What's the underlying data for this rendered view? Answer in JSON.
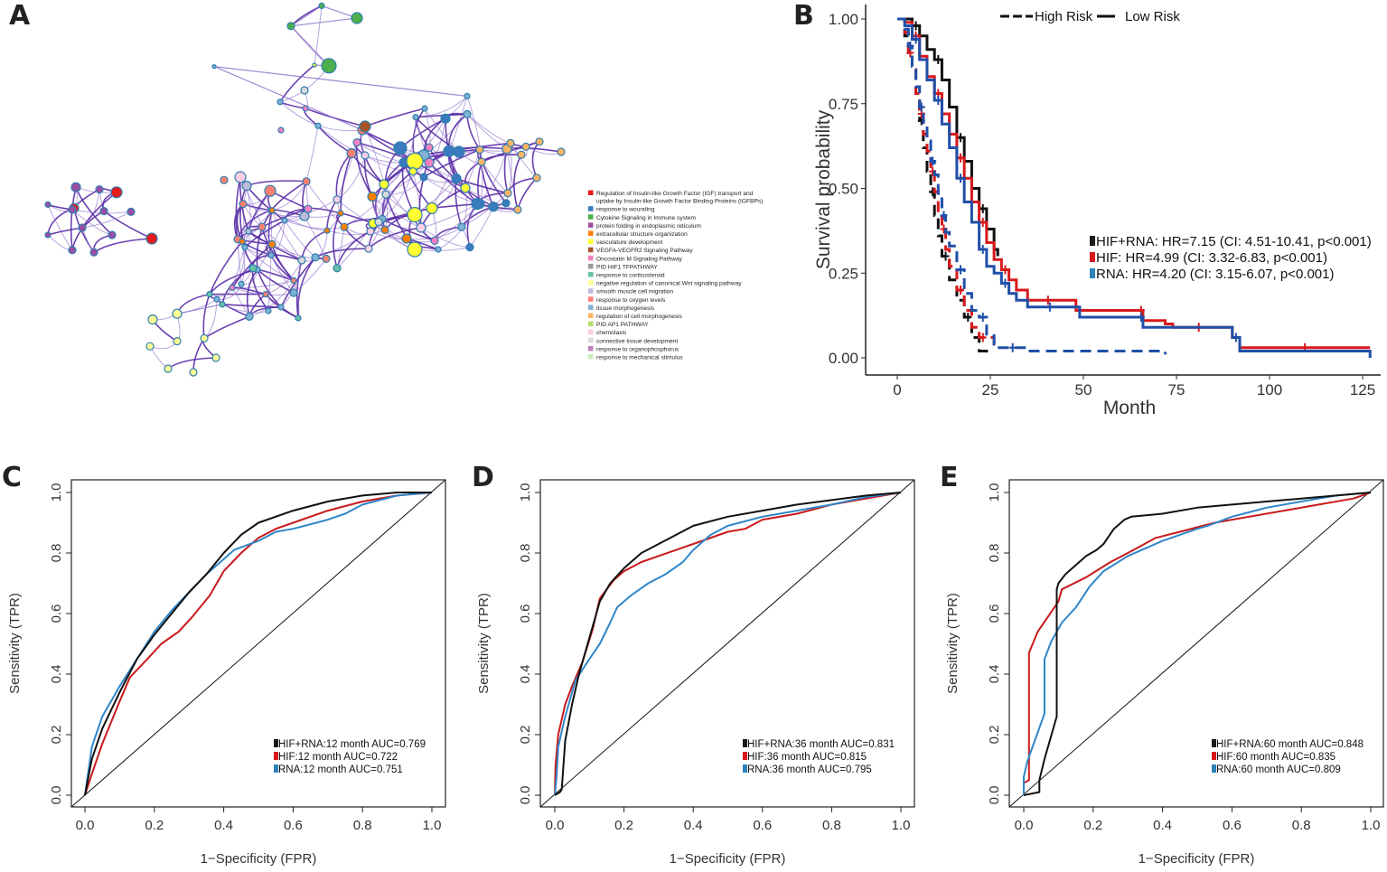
{
  "figure": {
    "panels": [
      "A",
      "B",
      "C",
      "D",
      "E"
    ]
  },
  "network_legend": {
    "items": [
      {
        "label": "Regulation of Insulin-like Growth Factor (IGF) transport and",
        "label2": "uptake by Insulin-like Growth Factor Binding Proteins (IGFBPs)",
        "color": "#e41a1c"
      },
      {
        "label": "response to wounding",
        "color": "#3a7bbf"
      },
      {
        "label": "Cytokine Signaling in Immune system",
        "color": "#4daf4a"
      },
      {
        "label": "protein folding in endoplasmic reticulum",
        "color": "#984ea3"
      },
      {
        "label": "extracellular structure organization",
        "color": "#ff7f00"
      },
      {
        "label": "vasculature development",
        "color": "#ffff33"
      },
      {
        "label": "VEGFA-VEGFR2 Signaling Pathway",
        "color": "#a65628"
      },
      {
        "label": "Oncostatin M Signaling Pathway",
        "color": "#f781bf"
      },
      {
        "label": "PID HIF1 TFPATHWAY",
        "color": "#999999"
      },
      {
        "label": "response to corticosteroid",
        "color": "#66c2a5"
      },
      {
        "label": "negative regulation of canonical Wnt signaling pathway",
        "color": "#ffff99"
      },
      {
        "label": "smooth muscle cell migration",
        "color": "#bebada"
      },
      {
        "label": "response to oxygen levels",
        "color": "#fb8072"
      },
      {
        "label": "tissue morphogenesis",
        "color": "#80b1d3"
      },
      {
        "label": "regulation of cell morphogenesis",
        "color": "#fdb462"
      },
      {
        "label": "PID AP1 PATHWAY",
        "color": "#b3de69"
      },
      {
        "label": "chemotaxis",
        "color": "#fccde5"
      },
      {
        "label": "connective tissue development",
        "color": "#d9d9d9"
      },
      {
        "label": "response to organophosphorus",
        "color": "#bc80bd"
      },
      {
        "label": "response to mechanical stimulus",
        "color": "#ccebc5"
      }
    ]
  },
  "chart_data": [
    {
      "panel": "B",
      "type": "line",
      "subtype": "kaplan-meier",
      "title": "",
      "xlabel": "Month",
      "ylabel": "Survival probability",
      "xlim": [
        0,
        127
      ],
      "ylim": [
        0,
        1
      ],
      "xticks": [
        "0",
        "25",
        "50",
        "75",
        "100",
        "125"
      ],
      "xtick_values": [
        0,
        25,
        50,
        75,
        100,
        125
      ],
      "yticks": [
        "0.00",
        "0.25",
        "0.50",
        "0.75",
        "1.00"
      ],
      "ytick_values": [
        0,
        0.25,
        0.5,
        0.75,
        1.0
      ],
      "grid": false,
      "linetype_legend": {
        "position": "top",
        "items": [
          {
            "label": "High Risk",
            "dash": true
          },
          {
            "label": "Low Risk",
            "dash": false
          }
        ]
      },
      "legend": {
        "position": "center-right",
        "items": [
          {
            "label": "HIF+RNA: HR=7.15 (CI: 4.51-10.41, p<0.001)",
            "color": "#1a1a1a"
          },
          {
            "label": "HIF: HR=4.99 (CI: 3.32-6.83, p<0.001)",
            "color": "#d7191c"
          },
          {
            "label": "RNA:  HR=4.20 (CI: 3.15-6.07, p<0.001)",
            "color": "#2b83ba"
          }
        ]
      },
      "series": [
        {
          "name": "HIF+RNA Low Risk",
          "color": "#111111",
          "dash": false,
          "x": [
            0,
            2,
            4,
            6,
            8,
            10,
            12,
            14,
            16,
            18,
            20,
            22,
            24,
            26,
            27
          ],
          "y": [
            1.0,
            1.0,
            0.98,
            0.95,
            0.91,
            0.88,
            0.82,
            0.74,
            0.65,
            0.58,
            0.5,
            0.44,
            0.38,
            0.32,
            0.3
          ]
        },
        {
          "name": "HIF Low Risk",
          "color": "#d7191c",
          "dash": false,
          "x": [
            0,
            2,
            4,
            6,
            8,
            10,
            12,
            14,
            16,
            18,
            20,
            22,
            24,
            26,
            28,
            30,
            32,
            35,
            46,
            48,
            65,
            66,
            72,
            74,
            88,
            90,
            92,
            127
          ],
          "y": [
            1.0,
            0.99,
            0.95,
            0.89,
            0.83,
            0.78,
            0.72,
            0.66,
            0.59,
            0.53,
            0.46,
            0.4,
            0.34,
            0.29,
            0.26,
            0.23,
            0.2,
            0.17,
            0.17,
            0.14,
            0.14,
            0.11,
            0.1,
            0.09,
            0.09,
            0.06,
            0.03,
            0.03
          ]
        },
        {
          "name": "RNA Low Risk",
          "color": "#1f4fa8",
          "dash": false,
          "x": [
            0,
            2,
            4,
            6,
            8,
            10,
            12,
            14,
            16,
            18,
            20,
            22,
            24,
            26,
            28,
            30,
            32,
            35,
            47,
            49,
            65,
            66,
            88,
            90,
            92,
            127,
            127
          ],
          "y": [
            1.0,
            0.98,
            0.94,
            0.88,
            0.82,
            0.76,
            0.69,
            0.62,
            0.53,
            0.46,
            0.4,
            0.32,
            0.27,
            0.25,
            0.22,
            0.19,
            0.17,
            0.15,
            0.15,
            0.12,
            0.12,
            0.09,
            0.09,
            0.06,
            0.02,
            0.02,
            0.0
          ]
        },
        {
          "name": "HIF+RNA High Risk",
          "color": "#111111",
          "dash": true,
          "x": [
            0,
            2,
            3,
            4,
            5,
            6,
            7,
            8,
            9,
            10,
            11,
            12,
            14,
            16,
            18,
            20,
            22,
            24
          ],
          "y": [
            1.0,
            0.95,
            0.9,
            0.85,
            0.78,
            0.7,
            0.62,
            0.55,
            0.49,
            0.42,
            0.36,
            0.3,
            0.23,
            0.17,
            0.12,
            0.06,
            0.02,
            0.0
          ]
        },
        {
          "name": "HIF High Risk",
          "color": "#d7191c",
          "dash": true,
          "x": [
            0,
            2,
            3,
            4,
            5,
            6,
            7,
            8,
            9,
            10,
            11,
            12,
            13,
            14,
            16,
            18,
            20,
            22,
            24,
            26
          ],
          "y": [
            1.0,
            0.96,
            0.9,
            0.85,
            0.78,
            0.72,
            0.66,
            0.61,
            0.55,
            0.49,
            0.43,
            0.38,
            0.32,
            0.27,
            0.2,
            0.14,
            0.09,
            0.06,
            0.06,
            0.03
          ]
        },
        {
          "name": "RNA High Risk",
          "color": "#1f4fa8",
          "dash": true,
          "x": [
            0,
            2,
            3,
            4,
            5,
            6,
            7,
            8,
            9,
            10,
            11,
            12,
            13,
            14,
            16,
            18,
            20,
            22,
            24,
            26,
            27,
            35,
            72
          ],
          "y": [
            1.0,
            0.97,
            0.92,
            0.86,
            0.8,
            0.74,
            0.69,
            0.64,
            0.58,
            0.54,
            0.48,
            0.42,
            0.37,
            0.33,
            0.26,
            0.19,
            0.14,
            0.12,
            0.07,
            0.04,
            0.03,
            0.02,
            0.01
          ]
        }
      ]
    },
    {
      "panel": "C",
      "type": "line",
      "subtype": "roc",
      "xlabel": "1−Specificity (FPR)",
      "ylabel": "Sensitivity (TPR)",
      "xlim": [
        0,
        1
      ],
      "ylim": [
        0,
        1
      ],
      "xticks": [
        "0.0",
        "0.2",
        "0.4",
        "0.6",
        "0.8",
        "1.0"
      ],
      "yticks": [
        "0.0",
        "0.2",
        "0.4",
        "0.6",
        "0.8",
        "1.0"
      ],
      "grid": false,
      "legend": {
        "position": "bottom-right",
        "items": [
          {
            "label": "HIF+RNA:12 month AUC=0.769",
            "color": "#1a1a1a"
          },
          {
            "label": "HIF:12 month AUC=0.722",
            "color": "#d7191c"
          },
          {
            "label": "RNA:12 month AUC=0.751",
            "color": "#2b83ba"
          }
        ]
      },
      "series": [
        {
          "name": "HIF+RNA",
          "auc": 0.769,
          "color": "#111111",
          "x": [
            0,
            0.02,
            0.05,
            0.1,
            0.15,
            0.2,
            0.25,
            0.3,
            0.35,
            0.4,
            0.45,
            0.5,
            0.6,
            0.7,
            0.8,
            0.9,
            1.0
          ],
          "y": [
            0,
            0.12,
            0.22,
            0.34,
            0.45,
            0.53,
            0.6,
            0.67,
            0.73,
            0.8,
            0.86,
            0.9,
            0.94,
            0.97,
            0.99,
            1.0,
            1.0
          ]
        },
        {
          "name": "HIF",
          "auc": 0.722,
          "color": "#c8191c",
          "x": [
            0,
            0.02,
            0.05,
            0.1,
            0.13,
            0.18,
            0.22,
            0.27,
            0.31,
            0.36,
            0.4,
            0.45,
            0.5,
            0.55,
            0.6,
            0.7,
            0.8,
            0.9,
            1.0
          ],
          "y": [
            0,
            0.07,
            0.17,
            0.31,
            0.39,
            0.45,
            0.5,
            0.54,
            0.59,
            0.66,
            0.74,
            0.8,
            0.85,
            0.88,
            0.9,
            0.94,
            0.97,
            0.99,
            1.0
          ]
        },
        {
          "name": "RNA",
          "auc": 0.751,
          "color": "#2f86c8",
          "x": [
            0,
            0.02,
            0.05,
            0.1,
            0.15,
            0.2,
            0.25,
            0.3,
            0.35,
            0.4,
            0.43,
            0.5,
            0.55,
            0.6,
            0.7,
            0.75,
            0.8,
            0.9,
            1.0
          ],
          "y": [
            0,
            0.16,
            0.26,
            0.36,
            0.45,
            0.54,
            0.61,
            0.67,
            0.73,
            0.78,
            0.81,
            0.84,
            0.87,
            0.88,
            0.91,
            0.93,
            0.96,
            0.99,
            1.0
          ]
        }
      ]
    },
    {
      "panel": "D",
      "type": "line",
      "subtype": "roc",
      "xlabel": "1−Specificity (FPR)",
      "ylabel": "Sensitivity (TPR)",
      "xlim": [
        0,
        1
      ],
      "ylim": [
        0,
        1
      ],
      "xticks": [
        "0.0",
        "0.2",
        "0.4",
        "0.6",
        "0.8",
        "1.0"
      ],
      "yticks": [
        "0.0",
        "0.2",
        "0.4",
        "0.6",
        "0.8",
        "1.0"
      ],
      "grid": false,
      "legend": {
        "position": "bottom-right",
        "items": [
          {
            "label": "HIF+RNA:36 month AUC=0.831",
            "color": "#1a1a1a"
          },
          {
            "label": "HIF:36 month AUC=0.815",
            "color": "#d7191c"
          },
          {
            "label": "RNA:36 month AUC=0.795",
            "color": "#2b83ba"
          }
        ]
      },
      "series": [
        {
          "name": "HIF+RNA",
          "auc": 0.831,
          "color": "#111111",
          "x": [
            0,
            0.015,
            0.02,
            0.03,
            0.05,
            0.07,
            0.1,
            0.13,
            0.16,
            0.2,
            0.25,
            0.3,
            0.4,
            0.5,
            0.6,
            0.7,
            0.8,
            0.9,
            1.0
          ],
          "y": [
            0,
            0.01,
            0.02,
            0.18,
            0.3,
            0.4,
            0.52,
            0.64,
            0.7,
            0.75,
            0.8,
            0.83,
            0.89,
            0.92,
            0.94,
            0.96,
            0.975,
            0.99,
            1.0
          ]
        },
        {
          "name": "HIF",
          "auc": 0.815,
          "color": "#c8191c",
          "x": [
            0,
            0.002,
            0.01,
            0.03,
            0.05,
            0.08,
            0.11,
            0.13,
            0.17,
            0.2,
            0.25,
            0.3,
            0.4,
            0.5,
            0.55,
            0.6,
            0.7,
            0.8,
            0.9,
            1.0
          ],
          "y": [
            0,
            0.1,
            0.2,
            0.3,
            0.36,
            0.44,
            0.55,
            0.65,
            0.71,
            0.74,
            0.77,
            0.79,
            0.83,
            0.87,
            0.88,
            0.91,
            0.93,
            0.96,
            0.98,
            1.0
          ]
        },
        {
          "name": "RNA",
          "auc": 0.795,
          "color": "#2f86c8",
          "x": [
            0,
            0.005,
            0.01,
            0.03,
            0.06,
            0.1,
            0.13,
            0.16,
            0.18,
            0.22,
            0.27,
            0.32,
            0.37,
            0.4,
            0.45,
            0.5,
            0.6,
            0.7,
            0.8,
            0.9,
            1.0
          ],
          "y": [
            0,
            0.06,
            0.16,
            0.26,
            0.38,
            0.45,
            0.5,
            0.57,
            0.62,
            0.66,
            0.7,
            0.73,
            0.77,
            0.81,
            0.86,
            0.89,
            0.92,
            0.94,
            0.96,
            0.985,
            1.0
          ]
        }
      ]
    },
    {
      "panel": "E",
      "type": "line",
      "subtype": "roc",
      "xlabel": "1−Specificity (FPR)",
      "ylabel": "Sensitivity (TPR)",
      "xlim": [
        0,
        1
      ],
      "ylim": [
        0,
        1
      ],
      "xticks": [
        "0.0",
        "0.2",
        "0.4",
        "0.6",
        "0.8",
        "1.0"
      ],
      "yticks": [
        "0.0",
        "0.2",
        "0.4",
        "0.6",
        "0.8",
        "1.0"
      ],
      "grid": false,
      "legend": {
        "position": "bottom-right",
        "items": [
          {
            "label": "HIF+RNA:60 month AUC=0.848",
            "color": "#1a1a1a"
          },
          {
            "label": "HIF:60 month AUC=0.835",
            "color": "#d7191c"
          },
          {
            "label": "RNA:60 month AUC=0.809",
            "color": "#2b83ba"
          }
        ]
      },
      "series": [
        {
          "name": "HIF+RNA",
          "auc": 0.848,
          "color": "#111111",
          "x": [
            0,
            0.045,
            0.045,
            0.06,
            0.095,
            0.095,
            0.1,
            0.12,
            0.15,
            0.18,
            0.21,
            0.23,
            0.26,
            0.29,
            0.31,
            0.4,
            0.5,
            0.6,
            0.7,
            0.8,
            0.9,
            1.0
          ],
          "y": [
            0,
            0.01,
            0.05,
            0.12,
            0.26,
            0.68,
            0.7,
            0.73,
            0.76,
            0.79,
            0.81,
            0.83,
            0.88,
            0.91,
            0.92,
            0.93,
            0.95,
            0.96,
            0.97,
            0.98,
            0.99,
            1.0
          ]
        },
        {
          "name": "HIF",
          "auc": 0.835,
          "color": "#c8191c",
          "x": [
            0,
            0.0,
            0.015,
            0.015,
            0.04,
            0.07,
            0.1,
            0.11,
            0.18,
            0.25,
            0.3,
            0.38,
            0.45,
            0.55,
            0.65,
            0.75,
            0.85,
            0.95,
            1.0
          ],
          "y": [
            0.03,
            0.04,
            0.05,
            0.47,
            0.54,
            0.59,
            0.64,
            0.68,
            0.72,
            0.77,
            0.8,
            0.85,
            0.87,
            0.9,
            0.92,
            0.94,
            0.96,
            0.98,
            1.0
          ]
        },
        {
          "name": "RNA",
          "auc": 0.809,
          "color": "#2f86c8",
          "x": [
            0,
            0.0,
            0.01,
            0.06,
            0.06,
            0.08,
            0.11,
            0.15,
            0.19,
            0.23,
            0.3,
            0.4,
            0.5,
            0.53,
            0.6,
            0.7,
            0.8,
            0.9,
            1.0
          ],
          "y": [
            0,
            0.06,
            0.11,
            0.27,
            0.45,
            0.51,
            0.57,
            0.62,
            0.69,
            0.74,
            0.79,
            0.84,
            0.88,
            0.89,
            0.92,
            0.95,
            0.97,
            0.99,
            1.0
          ]
        }
      ]
    }
  ]
}
